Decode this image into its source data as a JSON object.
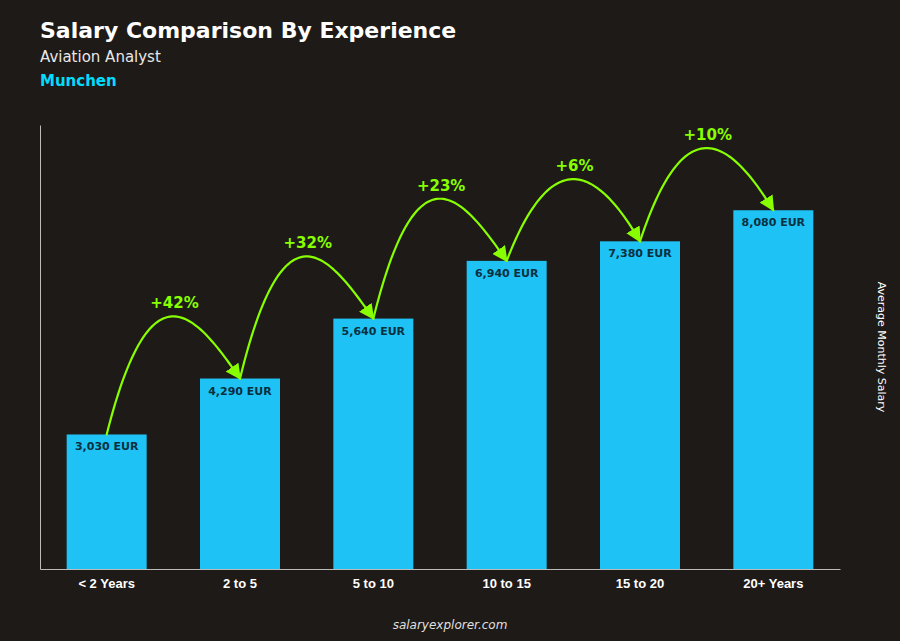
{
  "chart_data": {
    "type": "bar",
    "title": "Salary Comparison By Experience",
    "subtitle": [
      {
        "text": "Aviation Analyst"
      },
      {
        "text": "Munchen",
        "color": "#00ddff"
      }
    ],
    "ylabel": "Average Monthly Salary",
    "categories": [
      "< 2 Years",
      "2 to 5",
      "5 to 10",
      "10 to 15",
      "15 to 20",
      "20+ Years"
    ],
    "values": [
      3030,
      4290,
      5640,
      6940,
      7380,
      8080
    ],
    "value_labels": [
      "3,030 EUR",
      "4,290 EUR",
      "5,640 EUR",
      "6,940 EUR",
      "7,380 EUR",
      "8,080 EUR"
    ],
    "data_labels": true,
    "color": "#1fc2f5",
    "ylim": [
      0,
      10000
    ],
    "tick_labels": "x",
    "grid": false,
    "annotations": [
      {
        "text": "+42%",
        "from": 0,
        "to": 1,
        "color": "#88ff00"
      },
      {
        "text": "+32%",
        "from": 1,
        "to": 2,
        "color": "#88ff00"
      },
      {
        "text": "+23%",
        "from": 2,
        "to": 3,
        "color": "#88ff00"
      },
      {
        "text": "+6%",
        "from": 3,
        "to": 4,
        "color": "#88ff00"
      },
      {
        "text": "+10%",
        "from": 4,
        "to": 5,
        "color": "#88ff00"
      },
      {
        "text": "salaryexplorer.com"
      }
    ]
  }
}
